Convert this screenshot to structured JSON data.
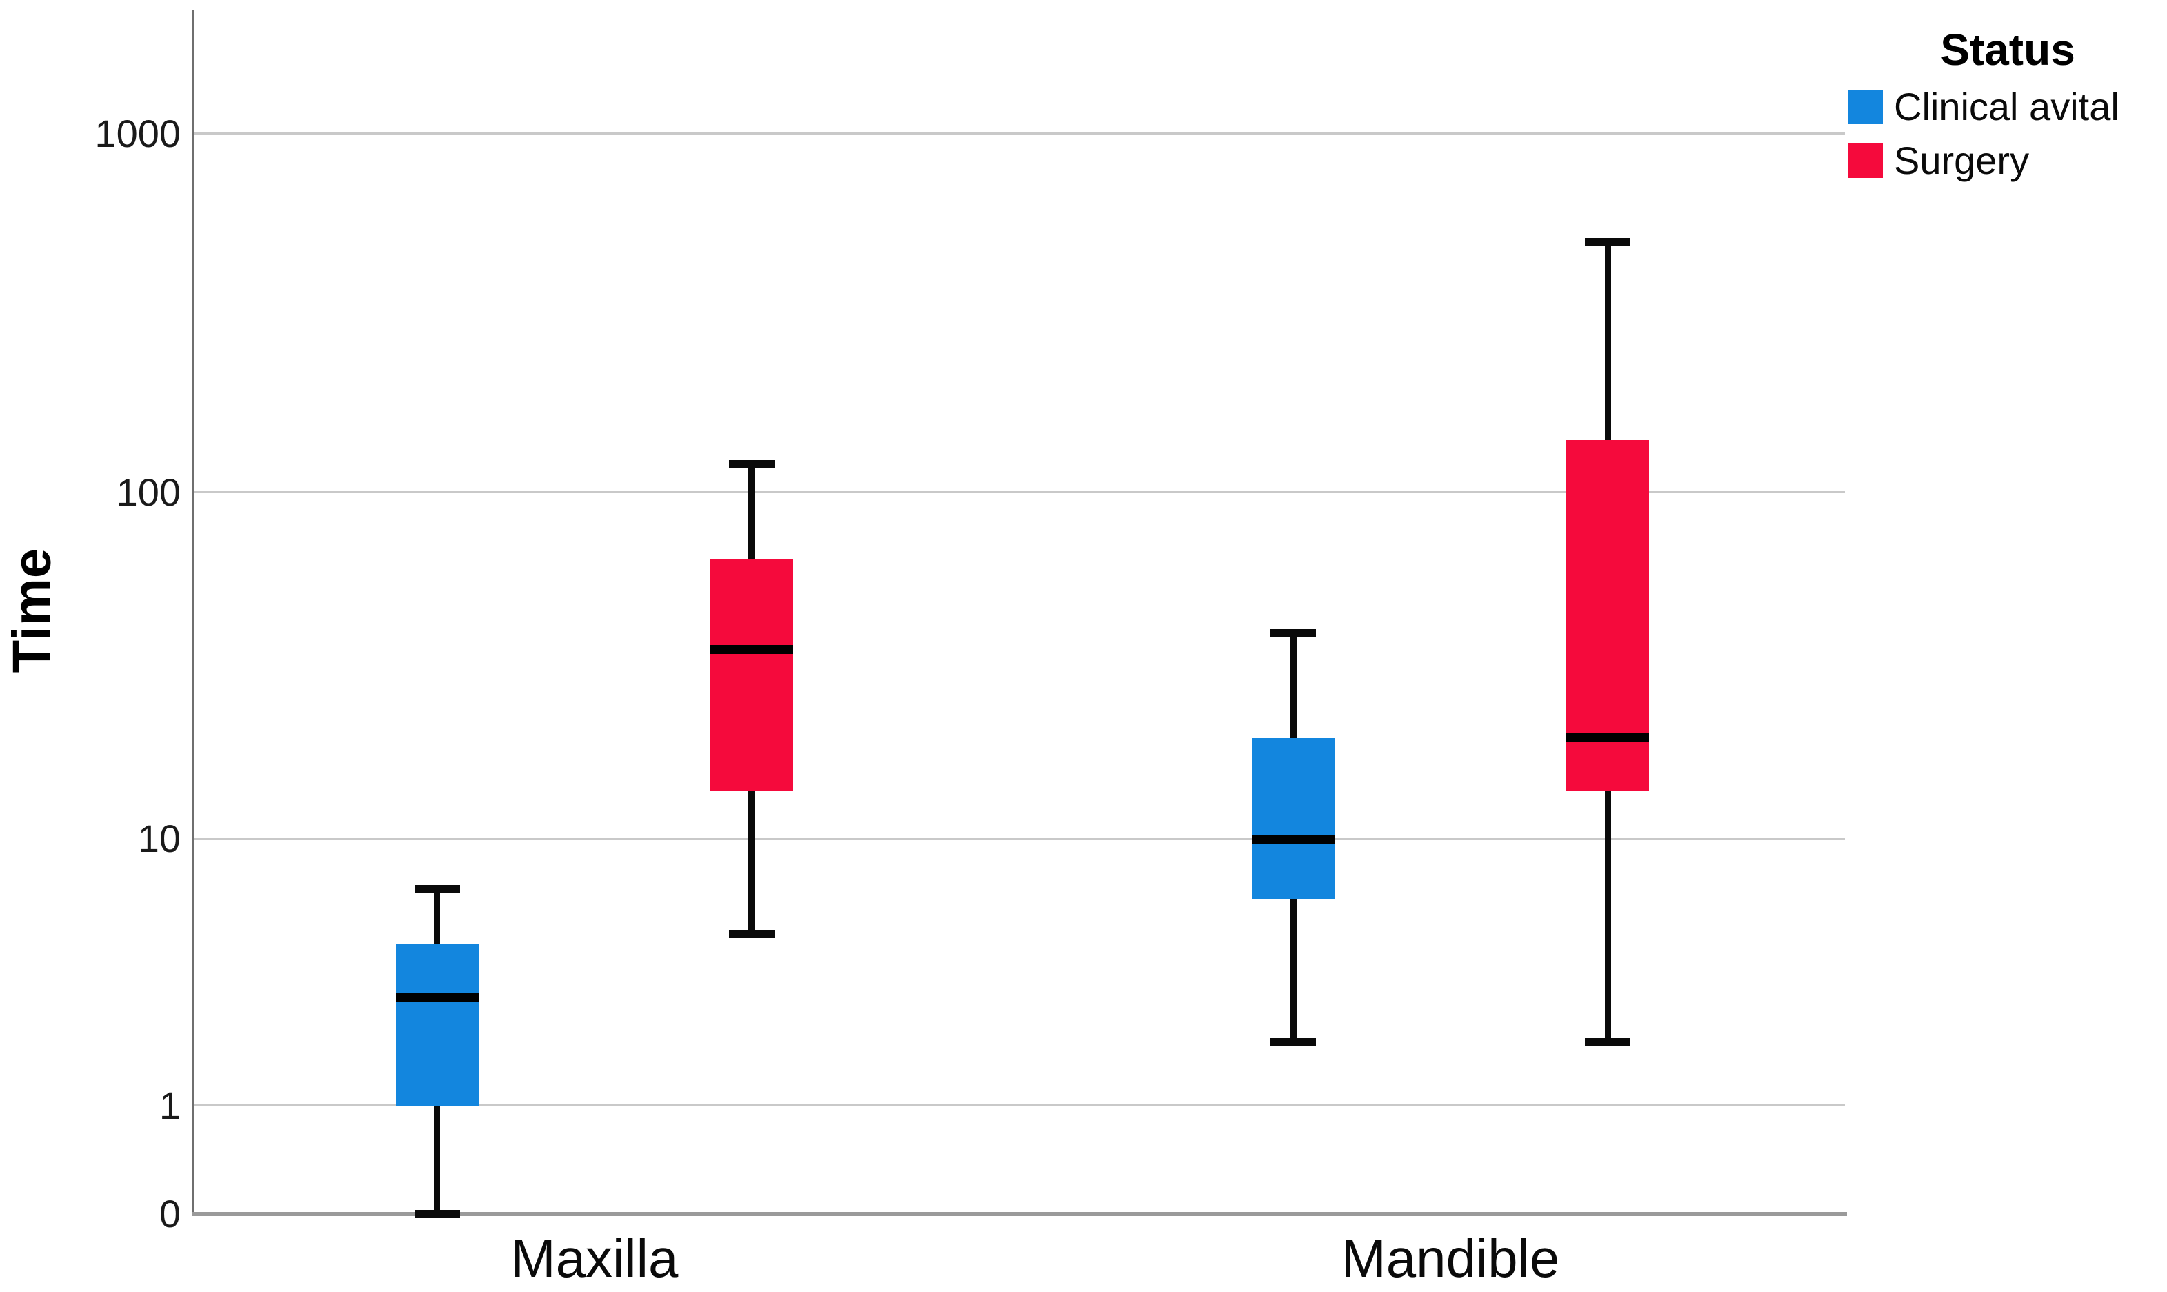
{
  "chart_data": {
    "type": "boxplot",
    "title": "",
    "xlabel": "",
    "ylabel": "Time",
    "yscale": "log10(value+1)",
    "y_ticks": [
      0,
      1,
      10,
      100,
      1000
    ],
    "ylim": [
      0,
      2000
    ],
    "grid": true,
    "categories": [
      "Maxilla",
      "Mandible"
    ],
    "legend": {
      "title": "Status",
      "position": "top-right",
      "entries": [
        {
          "label": "Clinical avital",
          "color": "#1386DE"
        },
        {
          "label": "Surgery",
          "color": "#F50A3C"
        }
      ]
    },
    "series": [
      {
        "name": "Clinical avital",
        "color": "#1386DE",
        "boxes": [
          {
            "category": "Maxilla",
            "min": 0,
            "q1": 1,
            "median": 3,
            "q3": 4.6,
            "max": 7
          },
          {
            "category": "Mandible",
            "min": 2,
            "q1": 6.5,
            "median": 10,
            "q3": 20,
            "max": 40
          }
        ]
      },
      {
        "name": "Surgery",
        "color": "#F50A3C",
        "boxes": [
          {
            "category": "Maxilla",
            "min": 5,
            "q1": 14,
            "median": 36,
            "q3": 65,
            "max": 120
          },
          {
            "category": "Mandible",
            "min": 2,
            "q1": 14,
            "median": 20,
            "q3": 140,
            "max": 500
          }
        ]
      }
    ],
    "colors": {
      "gridline": "#c9c9c9",
      "axis_line": "#9a9a9a",
      "spine": "#6f6f6f",
      "box_outline_and_whiskers": "#000000"
    }
  }
}
